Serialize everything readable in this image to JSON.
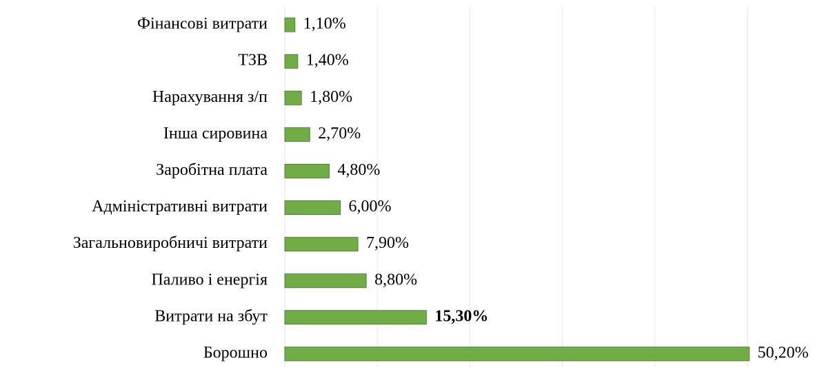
{
  "chart_data": {
    "type": "bar",
    "orientation": "horizontal",
    "categories": [
      "Фінансові витрати",
      "ТЗВ",
      "Нарахування з/п",
      "Інша сировина",
      "Заробітна плата",
      "Адміністративні витрати",
      "Загальновиробничі витрати",
      "Паливо і енергія",
      "Витрати на збут",
      "Борошно"
    ],
    "values": [
      1.1,
      1.4,
      1.8,
      2.7,
      4.8,
      6.0,
      7.9,
      8.8,
      15.3,
      50.2
    ],
    "value_labels": [
      "1,10%",
      "1,40%",
      "1,80%",
      "2,70%",
      "4,80%",
      "6,00%",
      "7,90%",
      "8,80%",
      "15,30%",
      "50,20%"
    ],
    "value_label_bold": [
      false,
      false,
      false,
      false,
      false,
      false,
      false,
      false,
      true,
      false
    ],
    "color": "#70ad47",
    "xlim": [
      0,
      50
    ],
    "xticks": [
      0,
      10,
      20,
      30,
      40,
      50
    ],
    "grid": true
  }
}
